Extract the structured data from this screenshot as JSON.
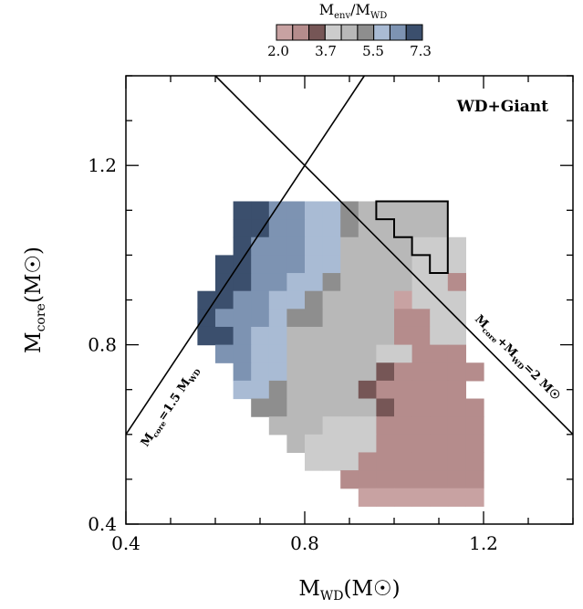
{
  "chart_data": {
    "type": "heatmap",
    "title": "",
    "xlabel": "M_WD(M☉)",
    "ylabel": "M_core(M☉)",
    "xlim": [
      0.4,
      1.4
    ],
    "ylim": [
      0.4,
      1.4
    ],
    "xticks": [
      "0.4",
      "0.8",
      "1.2"
    ],
    "yticks": [
      "0.4",
      "0.8",
      "1.2"
    ],
    "grid": false,
    "cell_size": {
      "dx": 0.04,
      "dy": 0.04
    },
    "colorbar": {
      "title": "M_env/M_WD",
      "position": "top-center",
      "range": [
        2.0,
        7.3
      ],
      "tick_labels": [
        "2.0",
        "3.7",
        "5.5",
        "7.3"
      ],
      "colors": [
        "#c8a2a2",
        "#b58c8c",
        "#765656",
        "#cccccc",
        "#b8b8b8",
        "#8e8e8e",
        "#a9bbd4",
        "#7d93b2",
        "#3b4f6d"
      ]
    },
    "annotations": {
      "panel_label": "WD+Giant",
      "line1_label": "M_core=1.5 M_WD",
      "line2_label": "M_core+M_WD=2 M☉"
    },
    "lines": [
      {
        "name": "M_core=1.5 M_WD",
        "x": [
          0.4,
          0.9333
        ],
        "y": [
          0.6,
          1.4
        ]
      },
      {
        "name": "M_core+M_WD=2 M☉",
        "x": [
          0.6,
          1.4
        ],
        "y": [
          1.4,
          0.6
        ]
      }
    ],
    "heatmap_rows": [
      {
        "y": 1.08,
        "x_start": 0.64,
        "levels": [
          8,
          8,
          7,
          7,
          6,
          6,
          5,
          4,
          4,
          4,
          4,
          4
        ]
      },
      {
        "y": 1.04,
        "x_start": 0.64,
        "levels": [
          8,
          8,
          7,
          7,
          6,
          6,
          5,
          4,
          4,
          4,
          4,
          4
        ]
      },
      {
        "y": 1.0,
        "x_start": 0.64,
        "levels": [
          8,
          7,
          7,
          7,
          6,
          6,
          4,
          4,
          4,
          4,
          3,
          3,
          3
        ]
      },
      {
        "y": 0.96,
        "x_start": 0.6,
        "levels": [
          8,
          8,
          7,
          7,
          7,
          6,
          6,
          4,
          4,
          4,
          4,
          3,
          3,
          3
        ]
      },
      {
        "y": 0.92,
        "x_start": 0.6,
        "levels": [
          8,
          8,
          7,
          7,
          6,
          6,
          5,
          4,
          4,
          4,
          4,
          3,
          3,
          1
        ]
      },
      {
        "y": 0.88,
        "x_start": 0.56,
        "levels": [
          8,
          8,
          7,
          7,
          6,
          6,
          5,
          4,
          4,
          4,
          4,
          0,
          3,
          3,
          3
        ]
      },
      {
        "y": 0.84,
        "x_start": 0.56,
        "levels": [
          8,
          7,
          7,
          7,
          6,
          5,
          5,
          4,
          4,
          4,
          4,
          1,
          1,
          3,
          3
        ]
      },
      {
        "y": 0.8,
        "x_start": 0.56,
        "levels": [
          8,
          8,
          7,
          6,
          6,
          4,
          4,
          4,
          4,
          4,
          4,
          1,
          1,
          3,
          3
        ]
      },
      {
        "y": 0.76,
        "x_start": 0.6,
        "levels": [
          7,
          7,
          6,
          6,
          4,
          4,
          4,
          4,
          4,
          3,
          3,
          1,
          1,
          1
        ]
      },
      {
        "y": 0.72,
        "x_start": 0.64,
        "levels": [
          7,
          6,
          6,
          4,
          4,
          4,
          4,
          4,
          2,
          1,
          1,
          1,
          1,
          1
        ]
      },
      {
        "y": 0.68,
        "x_start": 0.64,
        "levels": [
          6,
          6,
          5,
          4,
          4,
          4,
          4,
          2,
          1,
          1,
          1,
          1,
          1
        ]
      },
      {
        "y": 0.64,
        "x_start": 0.68,
        "levels": [
          5,
          5,
          4,
          4,
          4,
          4,
          4,
          2,
          1,
          1,
          1,
          1,
          1
        ]
      },
      {
        "y": 0.6,
        "x_start": 0.72,
        "levels": [
          4,
          4,
          4,
          3,
          3,
          3,
          1,
          1,
          1,
          1,
          1,
          1
        ]
      },
      {
        "y": 0.56,
        "x_start": 0.76,
        "levels": [
          4,
          3,
          3,
          3,
          3,
          1,
          1,
          1,
          1,
          1,
          1
        ]
      },
      {
        "y": 0.52,
        "x_start": 0.8,
        "levels": [
          3,
          3,
          3,
          1,
          1,
          1,
          1,
          1,
          1,
          1
        ]
      },
      {
        "y": 0.48,
        "x_start": 0.88,
        "levels": [
          1,
          1,
          1,
          1,
          1,
          1,
          1,
          1
        ]
      },
      {
        "y": 0.44,
        "x_start": 0.92,
        "levels": [
          0,
          0,
          0,
          0,
          0,
          0,
          0
        ]
      }
    ],
    "outlined_region": {
      "x": [
        0.96,
        1.12,
        1.12,
        1.08,
        1.08,
        1.04,
        1.04,
        1.0,
        1.0,
        0.96,
        0.96
      ],
      "y": [
        1.12,
        1.12,
        0.96,
        0.96,
        1.0,
        1.0,
        1.04,
        1.04,
        1.08,
        1.08,
        1.12
      ]
    }
  }
}
